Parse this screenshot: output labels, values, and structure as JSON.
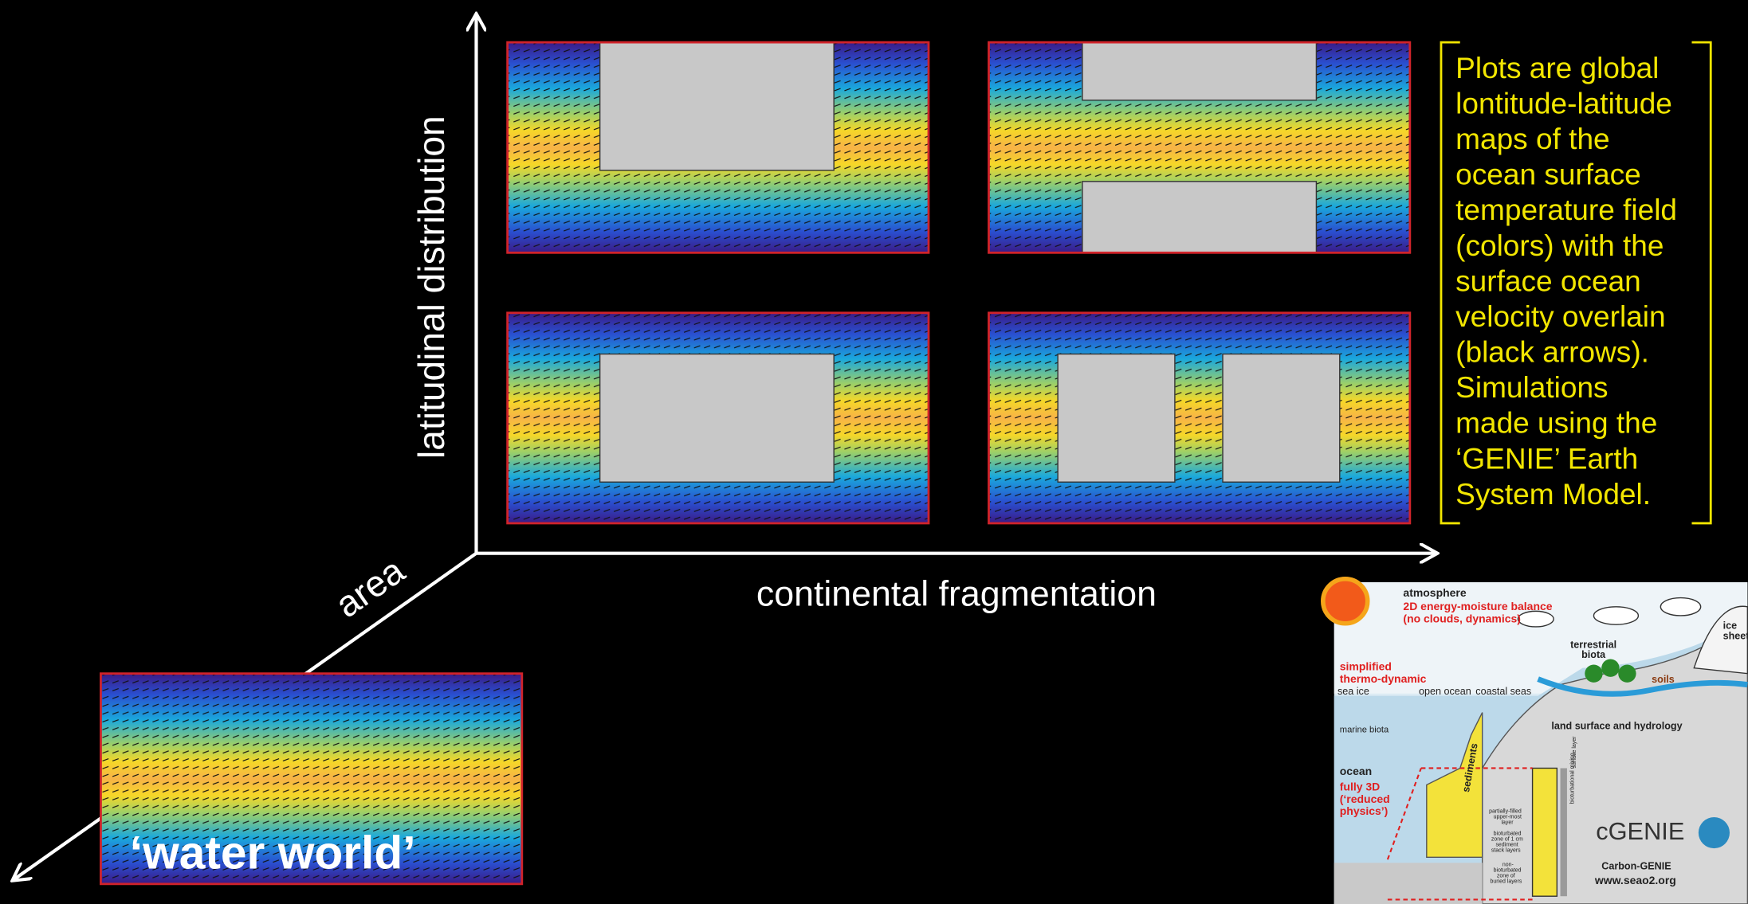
{
  "slide": {
    "y_axis_label": "latitudinal distribution",
    "x_axis_label": "continental fragmentation",
    "z_axis_label": "area",
    "water_world_label": "‘water world’",
    "description": [
      "Plots are global",
      "lontitude-latitude",
      "maps of the",
      "ocean surface",
      "temperature field",
      "(colors) with the",
      "surface ocean",
      "velocity overlain",
      "(black arrows).",
      "Simulations",
      "made using the",
      "‘GENIE’ Earth",
      "System Model."
    ],
    "inset": {
      "labels": [
        "atmosphere",
        "2D energy-moisture balance",
        "(no clouds, dynamics)",
        "simplified",
        "thermo-dynamic",
        "sea ice",
        "open ocean",
        "coastal seas",
        "terrestrial",
        "biota",
        "soils",
        "ice",
        "sheet",
        "land surface and hydrology",
        "marine biota",
        "ocean",
        "fully 3D",
        "(‘reduced",
        "physics’)",
        "sediments",
        "partially-filled",
        "upper-most",
        "layer",
        "bioturbated",
        "zone of 1 cm",
        "sediment",
        "stack layers",
        "non-",
        "bioturbated",
        "zone of",
        "buried layers",
        "bioturbational mixing",
        "surface layer",
        "cGENIE",
        "Carbon-GENIE",
        "www.seao2.org"
      ]
    }
  }
}
